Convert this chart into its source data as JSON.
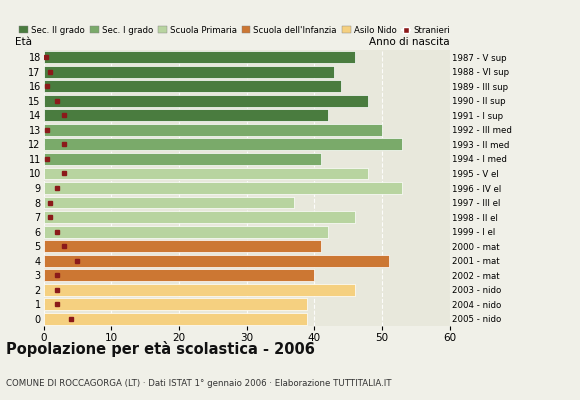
{
  "ages": [
    18,
    17,
    16,
    15,
    14,
    13,
    12,
    11,
    10,
    9,
    8,
    7,
    6,
    5,
    4,
    3,
    2,
    1,
    0
  ],
  "bar_values": [
    46,
    43,
    44,
    48,
    42,
    50,
    53,
    41,
    48,
    53,
    37,
    46,
    42,
    41,
    51,
    40,
    46,
    39,
    39
  ],
  "stranieri": [
    0.3,
    1,
    0.5,
    2,
    3,
    0.5,
    3,
    0.5,
    3,
    2,
    1,
    1,
    2,
    3,
    5,
    2,
    2,
    2,
    4
  ],
  "anno_labels": [
    "1987 - V sup",
    "1988 - VI sup",
    "1989 - III sup",
    "1990 - II sup",
    "1991 - I sup",
    "1992 - III med",
    "1993 - II med",
    "1994 - I med",
    "1995 - V el",
    "1996 - IV el",
    "1997 - III el",
    "1998 - II el",
    "1999 - I el",
    "2000 - mat",
    "2001 - mat",
    "2002 - mat",
    "2003 - nido",
    "2004 - nido",
    "2005 - nido"
  ],
  "bar_colors": [
    "#4a7c3f",
    "#4a7c3f",
    "#4a7c3f",
    "#4a7c3f",
    "#4a7c3f",
    "#7aaa6a",
    "#7aaa6a",
    "#7aaa6a",
    "#b8d4a0",
    "#b8d4a0",
    "#b8d4a0",
    "#b8d4a0",
    "#b8d4a0",
    "#cc7733",
    "#cc7733",
    "#cc7733",
    "#f5d080",
    "#f5d080",
    "#f5d080"
  ],
  "stranieri_color": "#8b1a1a",
  "legend_labels": [
    "Sec. II grado",
    "Sec. I grado",
    "Scuola Primaria",
    "Scuola dell'Infanzia",
    "Asilo Nido",
    "Stranieri"
  ],
  "legend_colors": [
    "#4a7c3f",
    "#7aaa6a",
    "#b8d4a0",
    "#cc7733",
    "#f5d080",
    "#8b1a1a"
  ],
  "title": "Popolazione per età scolastica - 2006",
  "subtitle": "COMUNE DI ROCCAGORGA (LT) · Dati ISTAT 1° gennaio 2006 · Elaborazione TUTTITALIA.IT",
  "xlabel_eta": "Età",
  "xlabel_anno": "Anno di nascita",
  "xlim": [
    0,
    60
  ],
  "xticks": [
    0,
    10,
    20,
    30,
    40,
    50,
    60
  ],
  "bg_color": "#f0f0e8",
  "plot_bg": "#e8e8dc"
}
